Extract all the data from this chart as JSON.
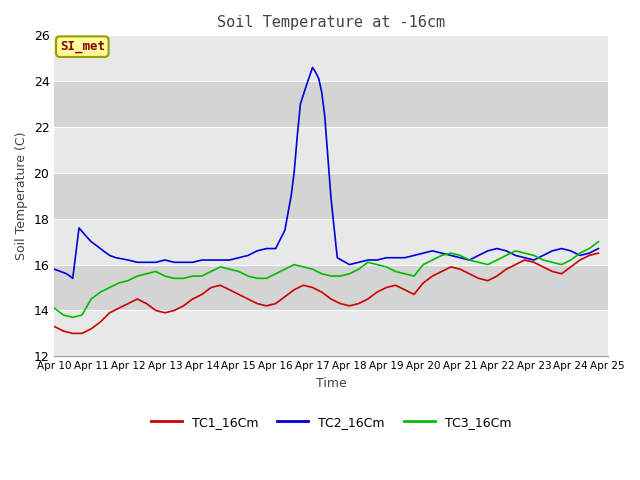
{
  "title": "Soil Temperature at -16cm",
  "xlabel": "Time",
  "ylabel": "Soil Temperature (C)",
  "ylim": [
    12,
    26
  ],
  "yticks": [
    12,
    14,
    16,
    18,
    20,
    22,
    24,
    26
  ],
  "fig_bg": "#ffffff",
  "plot_bg_light": "#e8e8e8",
  "plot_bg_dark": "#d0d0d0",
  "annotation_text": "SI_met",
  "annotation_bg": "#ffff99",
  "annotation_border": "#999900",
  "annotation_text_color": "#880000",
  "legend_labels": [
    "TC1_16Cm",
    "TC2_16Cm",
    "TC3_16Cm"
  ],
  "line_colors": [
    "#cc0000",
    "#0000dd",
    "#00bb00"
  ],
  "x_labels": [
    "Apr 10",
    "Apr 11",
    "Apr 12",
    "Apr 13",
    "Apr 14",
    "Apr 15",
    "Apr 16",
    "Apr 17",
    "Apr 18",
    "Apr 19",
    "Apr 20",
    "Apr 21",
    "Apr 22",
    "Apr 23",
    "Apr 24",
    "Apr 25"
  ],
  "tc1_x": [
    0.0,
    0.25,
    0.5,
    0.75,
    1.0,
    1.25,
    1.5,
    1.75,
    2.0,
    2.25,
    2.5,
    2.75,
    3.0,
    3.25,
    3.5,
    3.75,
    4.0,
    4.25,
    4.5,
    4.75,
    5.0,
    5.25,
    5.5,
    5.75,
    6.0,
    6.25,
    6.5,
    6.75,
    7.0,
    7.25,
    7.5,
    7.75,
    8.0,
    8.25,
    8.5,
    8.75,
    9.0,
    9.25,
    9.5,
    9.75,
    10.0,
    10.25,
    10.5,
    10.75,
    11.0,
    11.25,
    11.5,
    11.75,
    12.0,
    12.25,
    12.5,
    12.75,
    13.0,
    13.25,
    13.5,
    13.75,
    14.0,
    14.25,
    14.5,
    14.75
  ],
  "tc1_y": [
    13.3,
    13.1,
    13.0,
    13.0,
    13.2,
    13.5,
    13.9,
    14.1,
    14.3,
    14.5,
    14.3,
    14.0,
    13.9,
    14.0,
    14.2,
    14.5,
    14.7,
    15.0,
    15.1,
    14.9,
    14.7,
    14.5,
    14.3,
    14.2,
    14.3,
    14.6,
    14.9,
    15.1,
    15.0,
    14.8,
    14.5,
    14.3,
    14.2,
    14.3,
    14.5,
    14.8,
    15.0,
    15.1,
    14.9,
    14.7,
    15.2,
    15.5,
    15.7,
    15.9,
    15.8,
    15.6,
    15.4,
    15.3,
    15.5,
    15.8,
    16.0,
    16.2,
    16.1,
    15.9,
    15.7,
    15.6,
    15.9,
    16.2,
    16.4,
    16.5
  ],
  "tc2_x": [
    0.0,
    0.17,
    0.33,
    0.42,
    0.5,
    0.67,
    0.83,
    1.0,
    1.17,
    1.33,
    1.5,
    1.67,
    2.0,
    2.25,
    2.5,
    2.75,
    3.0,
    3.25,
    3.5,
    3.75,
    4.0,
    4.25,
    4.5,
    4.75,
    5.0,
    5.25,
    5.5,
    5.75,
    6.0,
    6.25,
    6.42,
    6.5,
    6.58,
    6.67,
    6.83,
    7.0,
    7.08,
    7.17,
    7.25,
    7.33,
    7.5,
    7.67,
    8.0,
    8.25,
    8.5,
    8.75,
    9.0,
    9.25,
    9.5,
    9.75,
    10.0,
    10.25,
    10.5,
    10.75,
    11.0,
    11.25,
    11.5,
    11.75,
    12.0,
    12.25,
    12.5,
    12.75,
    13.0,
    13.25,
    13.5,
    13.75,
    14.0,
    14.25,
    14.5,
    14.75
  ],
  "tc2_y": [
    15.8,
    15.7,
    15.6,
    15.5,
    15.4,
    17.6,
    17.3,
    17.0,
    16.8,
    16.6,
    16.4,
    16.3,
    16.2,
    16.1,
    16.1,
    16.1,
    16.2,
    16.1,
    16.1,
    16.1,
    16.2,
    16.2,
    16.2,
    16.2,
    16.3,
    16.4,
    16.6,
    16.7,
    16.7,
    17.5,
    19.0,
    20.0,
    21.5,
    23.0,
    23.8,
    24.6,
    24.4,
    24.1,
    23.5,
    22.5,
    18.9,
    16.3,
    16.0,
    16.1,
    16.2,
    16.2,
    16.3,
    16.3,
    16.3,
    16.4,
    16.5,
    16.6,
    16.5,
    16.4,
    16.3,
    16.2,
    16.4,
    16.6,
    16.7,
    16.6,
    16.4,
    16.3,
    16.2,
    16.4,
    16.6,
    16.7,
    16.6,
    16.4,
    16.5,
    16.7
  ],
  "tc3_x": [
    0.0,
    0.25,
    0.5,
    0.75,
    1.0,
    1.25,
    1.5,
    1.75,
    2.0,
    2.25,
    2.5,
    2.75,
    3.0,
    3.25,
    3.5,
    3.75,
    4.0,
    4.25,
    4.5,
    4.75,
    5.0,
    5.25,
    5.5,
    5.75,
    6.0,
    6.25,
    6.5,
    6.75,
    7.0,
    7.25,
    7.5,
    7.75,
    8.0,
    8.25,
    8.5,
    8.75,
    9.0,
    9.25,
    9.5,
    9.75,
    10.0,
    10.25,
    10.5,
    10.75,
    11.0,
    11.25,
    11.5,
    11.75,
    12.0,
    12.25,
    12.5,
    12.75,
    13.0,
    13.25,
    13.5,
    13.75,
    14.0,
    14.25,
    14.5,
    14.75
  ],
  "tc3_y": [
    14.1,
    13.8,
    13.7,
    13.8,
    14.5,
    14.8,
    15.0,
    15.2,
    15.3,
    15.5,
    15.6,
    15.7,
    15.5,
    15.4,
    15.4,
    15.5,
    15.5,
    15.7,
    15.9,
    15.8,
    15.7,
    15.5,
    15.4,
    15.4,
    15.6,
    15.8,
    16.0,
    15.9,
    15.8,
    15.6,
    15.5,
    15.5,
    15.6,
    15.8,
    16.1,
    16.0,
    15.9,
    15.7,
    15.6,
    15.5,
    16.0,
    16.2,
    16.4,
    16.5,
    16.4,
    16.2,
    16.1,
    16.0,
    16.2,
    16.4,
    16.6,
    16.5,
    16.4,
    16.2,
    16.1,
    16.0,
    16.2,
    16.5,
    16.7,
    17.0
  ]
}
